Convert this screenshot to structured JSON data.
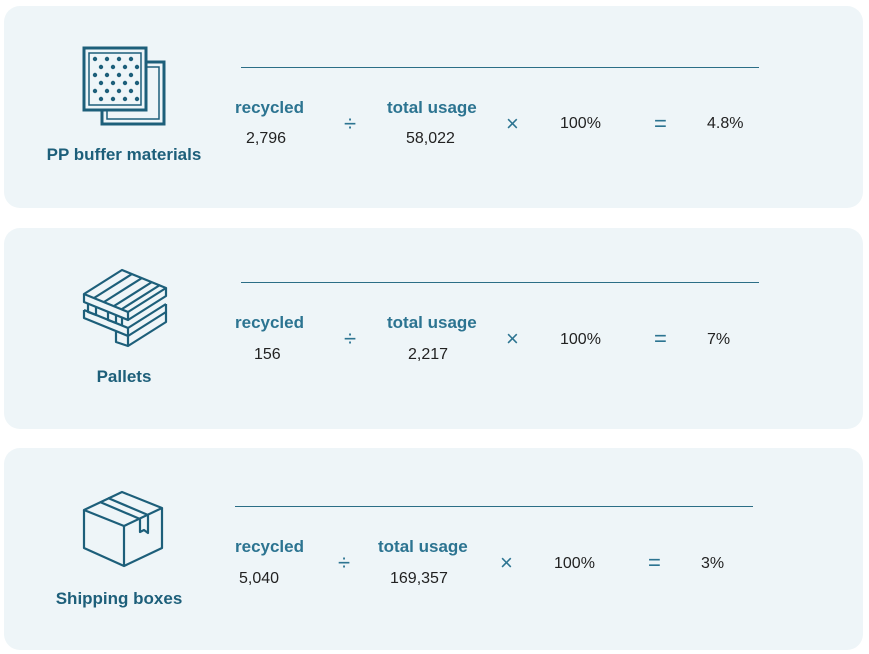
{
  "rows": [
    {
      "name": "PP buffer materials",
      "icon": "pp-buffer-material-icon",
      "recycled_label": "recycled",
      "recycled_value": "2,796",
      "divide_symbol": "÷",
      "total_label": "total usage",
      "total_value": "58,022",
      "multiply_symbol": "×",
      "percent": "100%",
      "equals_symbol": "=",
      "result": "4.8%"
    },
    {
      "name": "Pallets",
      "icon": "pallet-icon",
      "recycled_label": "recycled",
      "recycled_value": "156",
      "divide_symbol": "÷",
      "total_label": "total usage",
      "total_value": "2,217",
      "multiply_symbol": "×",
      "percent": "100%",
      "equals_symbol": "=",
      "result": "7%"
    },
    {
      "name": "Shipping boxes",
      "icon": "shipping-box-icon",
      "recycled_label": "recycled",
      "recycled_value": "5,040",
      "divide_symbol": "÷",
      "total_label": "total usage",
      "total_value": "169,357",
      "multiply_symbol": "×",
      "percent": "100%",
      "equals_symbol": "=",
      "result": "3%"
    }
  ],
  "colors": {
    "card_bg": "#eef5f8",
    "accent": "#2c7491",
    "title": "#1d5f7a"
  }
}
